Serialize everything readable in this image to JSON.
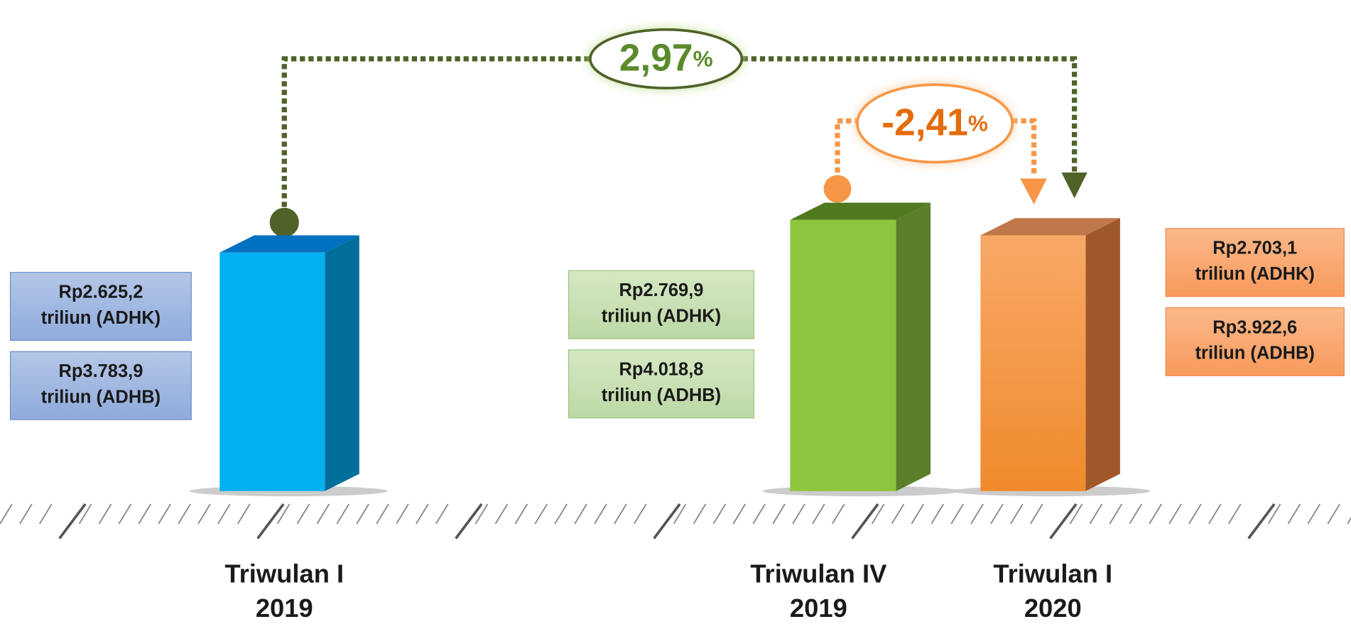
{
  "growth": [
    {
      "value": "2,97",
      "unit": "%"
    },
    {
      "value": "-2,41",
      "unit": "%"
    }
  ],
  "periods": [
    {
      "label": [
        "Triwulan I",
        "2019"
      ],
      "boxes": [
        [
          "Rp2.625,2",
          "triliun (ADHK)"
        ],
        [
          "Rp3.783,9",
          "triliun (ADHB)"
        ]
      ]
    },
    {
      "label": [
        "Triwulan IV",
        "2019"
      ],
      "boxes": [
        [
          "Rp2.769,9",
          "triliun (ADHK)"
        ],
        [
          "Rp4.018,8",
          "triliun (ADHB)"
        ]
      ]
    },
    {
      "label": [
        "Triwulan I",
        "2020"
      ],
      "boxes": [
        [
          "Rp2.703,1",
          "triliun (ADHK)"
        ],
        [
          "Rp3.922,6",
          "triliun (ADHB)"
        ]
      ]
    }
  ]
}
